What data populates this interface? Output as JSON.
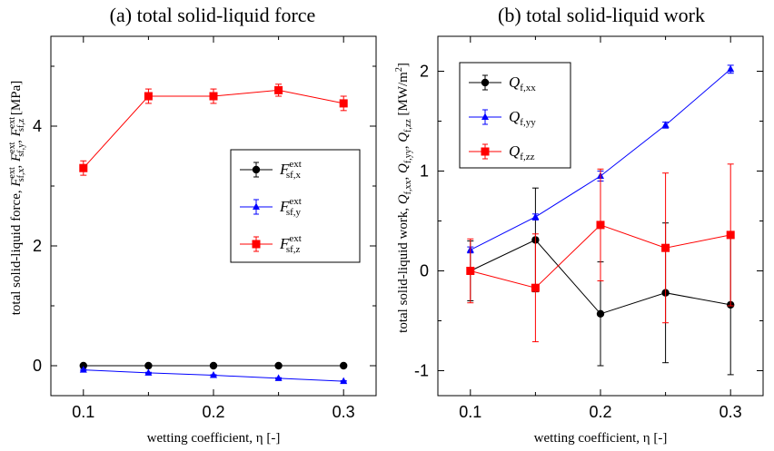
{
  "chart_data": [
    {
      "type": "line",
      "title": "(a) total solid-liquid force",
      "xlabel": "wetting coefficient, η [-]",
      "ylabel": "total solid-liquid force,  F^ext_sf,x, F^ext_sf,y, F^ext_sf,z  [MPa]",
      "ylabel_parts": {
        "prefix": "total solid-liquid force,",
        "symbols": [
          "F",
          "F",
          "F"
        ],
        "sup": "ext",
        "subs": [
          "sf,x",
          "sf,y",
          "sf,z"
        ],
        "unit": "[MPa]"
      },
      "x": [
        0.1,
        0.15,
        0.2,
        0.25,
        0.3
      ],
      "xlim": [
        0.075,
        0.325
      ],
      "ylim": [
        -0.5,
        5.5
      ],
      "xticks": [
        0.1,
        0.2,
        0.3
      ],
      "xtick_labels": [
        "0.1",
        "0.2",
        "0.3"
      ],
      "yticks": [
        0,
        2,
        4
      ],
      "ytick_labels": [
        "0",
        "2",
        "4"
      ],
      "grid": false,
      "legend_position": "right-middle",
      "series": [
        {
          "name": "F^ext_sf,x",
          "symbol": "F",
          "sup": "ext",
          "sub": "sf,x",
          "color": "#000000",
          "marker": "circle",
          "values": [
            0.0,
            0.0,
            0.0,
            0.0,
            0.0
          ],
          "errors": [
            0.02,
            0.02,
            0.02,
            0.02,
            0.02
          ]
        },
        {
          "name": "F^ext_sf,y",
          "symbol": "F",
          "sup": "ext",
          "sub": "sf,y",
          "color": "#0000ff",
          "marker": "triangle",
          "values": [
            -0.07,
            -0.12,
            -0.16,
            -0.21,
            -0.26
          ],
          "errors": [
            0.01,
            0.01,
            0.01,
            0.01,
            0.01
          ]
        },
        {
          "name": "F^ext_sf,z",
          "symbol": "F",
          "sup": "ext",
          "sub": "sf,z",
          "color": "#ff0000",
          "marker": "square",
          "values": [
            3.3,
            4.5,
            4.5,
            4.6,
            4.38
          ],
          "errors": [
            0.12,
            0.12,
            0.12,
            0.1,
            0.12
          ]
        }
      ]
    },
    {
      "type": "line",
      "title": "(b) total solid-liquid work",
      "xlabel": "wetting coefficient, η [-]",
      "ylabel": "total solid-liquid work,  Q_f,xx, Q_f,yy, Q_f,zz  [MW/m2]",
      "ylabel_parts": {
        "prefix": "total solid-liquid work,",
        "symbols": [
          "Q",
          "Q",
          "Q"
        ],
        "subs": [
          "f,xx",
          "f,yy",
          "f,zz"
        ],
        "unit": "[MW/m",
        "unit_sup": "2",
        "unit_close": "]"
      },
      "x": [
        0.1,
        0.15,
        0.2,
        0.25,
        0.3
      ],
      "xlim": [
        0.075,
        0.325
      ],
      "ylim": [
        -1.25,
        2.35
      ],
      "xticks": [
        0.1,
        0.2,
        0.3
      ],
      "xtick_labels": [
        "0.1",
        "0.2",
        "0.3"
      ],
      "yticks": [
        -1,
        0,
        1,
        2
      ],
      "ytick_labels": [
        "-1",
        "0",
        "1",
        "2"
      ],
      "grid": false,
      "legend_position": "top-left",
      "series": [
        {
          "name": "Q_f,xx",
          "symbol": "Q",
          "sub": "f,xx",
          "color": "#000000",
          "marker": "circle",
          "values": [
            0.0,
            0.31,
            -0.43,
            -0.22,
            -0.34
          ],
          "errors": [
            0.3,
            0.52,
            0.52,
            0.7,
            0.7
          ]
        },
        {
          "name": "Q_f,yy",
          "symbol": "Q",
          "sub": "f,yy",
          "color": "#0000ff",
          "marker": "triangle",
          "values": [
            0.21,
            0.54,
            0.95,
            1.46,
            2.02
          ],
          "errors": [
            0.03,
            0.03,
            0.05,
            0.03,
            0.04
          ]
        },
        {
          "name": "Q_f,zz",
          "symbol": "Q",
          "sub": "f,zz",
          "color": "#ff0000",
          "marker": "square",
          "values": [
            0.0,
            -0.17,
            0.46,
            0.23,
            0.36
          ],
          "errors": [
            0.32,
            0.54,
            0.56,
            0.75,
            0.71
          ]
        }
      ]
    }
  ]
}
